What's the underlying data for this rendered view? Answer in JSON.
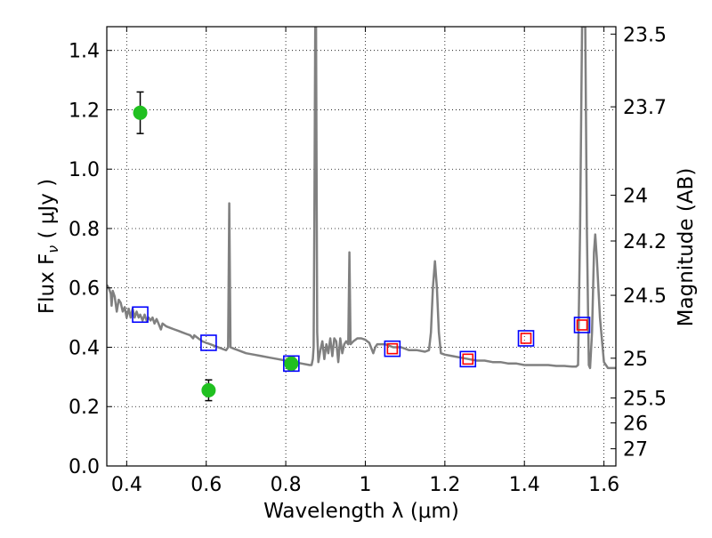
{
  "chart_data": {
    "type": "scatter",
    "xlabel": "Wavelength  λ (μm)",
    "ylabel": "Flux  F",
    "ylabel_subscript": "ν",
    "ylabel_unit": "  ( μJy )",
    "y2label": "Magnitude (AB)",
    "xlim": [
      0.35,
      1.63
    ],
    "ylim": [
      0.0,
      1.48
    ],
    "grid": true,
    "x_ticks": [
      {
        "value": 0.4,
        "label": "0.4"
      },
      {
        "value": 0.6,
        "label": "0.6"
      },
      {
        "value": 0.8,
        "label": "0.8"
      },
      {
        "value": 1.0,
        "label": "1"
      },
      {
        "value": 1.2,
        "label": "1.2"
      },
      {
        "value": 1.4,
        "label": "1.4"
      },
      {
        "value": 1.6,
        "label": "1.6"
      }
    ],
    "y_ticks": [
      {
        "value": 0.0,
        "label": "0.0"
      },
      {
        "value": 0.2,
        "label": "0.2"
      },
      {
        "value": 0.4,
        "label": "0.4"
      },
      {
        "value": 0.6,
        "label": "0.6"
      },
      {
        "value": 0.8,
        "label": "0.8"
      },
      {
        "value": 1.0,
        "label": "1.0"
      },
      {
        "value": 1.2,
        "label": "1.2"
      },
      {
        "value": 1.4,
        "label": "1.4"
      }
    ],
    "y2_ticks": [
      {
        "flux": 1.455,
        "label": "23.5"
      },
      {
        "flux": 1.21,
        "label": "23.7"
      },
      {
        "flux": 0.912,
        "label": "24"
      },
      {
        "flux": 0.758,
        "label": "24.2"
      },
      {
        "flux": 0.575,
        "label": "24.5"
      },
      {
        "flux": 0.363,
        "label": "25"
      },
      {
        "flux": 0.229,
        "label": "25.5"
      },
      {
        "flux": 0.145,
        "label": "26"
      },
      {
        "flux": 0.058,
        "label": "27"
      }
    ],
    "series": [
      {
        "name": "model spectrum",
        "style": "line",
        "color": "#808080",
        "points": [
          [
            0.35,
            0.61
          ],
          [
            0.355,
            0.6
          ],
          [
            0.36,
            0.58
          ],
          [
            0.362,
            0.54
          ],
          [
            0.365,
            0.59
          ],
          [
            0.37,
            0.57
          ],
          [
            0.375,
            0.52
          ],
          [
            0.38,
            0.56
          ],
          [
            0.385,
            0.55
          ],
          [
            0.39,
            0.52
          ],
          [
            0.395,
            0.535
          ],
          [
            0.4,
            0.5
          ],
          [
            0.405,
            0.53
          ],
          [
            0.41,
            0.5
          ],
          [
            0.415,
            0.53
          ],
          [
            0.42,
            0.5
          ],
          [
            0.425,
            0.52
          ],
          [
            0.43,
            0.5
          ],
          [
            0.434,
            0.51
          ],
          [
            0.44,
            0.49
          ],
          [
            0.445,
            0.51
          ],
          [
            0.45,
            0.49
          ],
          [
            0.455,
            0.5
          ],
          [
            0.46,
            0.49
          ],
          [
            0.465,
            0.5
          ],
          [
            0.47,
            0.48
          ],
          [
            0.475,
            0.495
          ],
          [
            0.48,
            0.48
          ],
          [
            0.486,
            0.46
          ],
          [
            0.49,
            0.48
          ],
          [
            0.5,
            0.47
          ],
          [
            0.51,
            0.465
          ],
          [
            0.52,
            0.46
          ],
          [
            0.53,
            0.455
          ],
          [
            0.54,
            0.45
          ],
          [
            0.55,
            0.445
          ],
          [
            0.56,
            0.44
          ],
          [
            0.567,
            0.43
          ],
          [
            0.57,
            0.44
          ],
          [
            0.58,
            0.43
          ],
          [
            0.59,
            0.42
          ],
          [
            0.6,
            0.415
          ],
          [
            0.61,
            0.41
          ],
          [
            0.62,
            0.405
          ],
          [
            0.63,
            0.4
          ],
          [
            0.64,
            0.395
          ],
          [
            0.65,
            0.39
          ],
          [
            0.655,
            0.4
          ],
          [
            0.658,
            0.885
          ],
          [
            0.661,
            0.4
          ],
          [
            0.67,
            0.395
          ],
          [
            0.68,
            0.39
          ],
          [
            0.7,
            0.38
          ],
          [
            0.72,
            0.375
          ],
          [
            0.74,
            0.37
          ],
          [
            0.76,
            0.365
          ],
          [
            0.78,
            0.36
          ],
          [
            0.8,
            0.355
          ],
          [
            0.82,
            0.35
          ],
          [
            0.84,
            0.345
          ],
          [
            0.86,
            0.34
          ],
          [
            0.865,
            0.34
          ],
          [
            0.868,
            0.36
          ],
          [
            0.87,
            0.4
          ],
          [
            0.872,
            0.88
          ],
          [
            0.874,
            1.48
          ],
          [
            0.876,
            1.48
          ],
          [
            0.879,
            0.45
          ],
          [
            0.882,
            0.35
          ],
          [
            0.887,
            0.39
          ],
          [
            0.892,
            0.42
          ],
          [
            0.897,
            0.36
          ],
          [
            0.902,
            0.41
          ],
          [
            0.907,
            0.38
          ],
          [
            0.912,
            0.43
          ],
          [
            0.917,
            0.37
          ],
          [
            0.922,
            0.43
          ],
          [
            0.927,
            0.42
          ],
          [
            0.932,
            0.35
          ],
          [
            0.937,
            0.43
          ],
          [
            0.942,
            0.38
          ],
          [
            0.947,
            0.41
          ],
          [
            0.952,
            0.42
          ],
          [
            0.957,
            0.41
          ],
          [
            0.96,
            0.72
          ],
          [
            0.963,
            0.41
          ],
          [
            0.97,
            0.42
          ],
          [
            0.98,
            0.43
          ],
          [
            0.99,
            0.43
          ],
          [
            1.0,
            0.425
          ],
          [
            1.01,
            0.415
          ],
          [
            1.02,
            0.38
          ],
          [
            1.025,
            0.4
          ],
          [
            1.03,
            0.41
          ],
          [
            1.05,
            0.41
          ],
          [
            1.07,
            0.4
          ],
          [
            1.09,
            0.4
          ],
          [
            1.11,
            0.39
          ],
          [
            1.13,
            0.39
          ],
          [
            1.15,
            0.385
          ],
          [
            1.16,
            0.39
          ],
          [
            1.165,
            0.45
          ],
          [
            1.17,
            0.6
          ],
          [
            1.175,
            0.69
          ],
          [
            1.18,
            0.6
          ],
          [
            1.185,
            0.45
          ],
          [
            1.19,
            0.38
          ],
          [
            1.2,
            0.375
          ],
          [
            1.22,
            0.37
          ],
          [
            1.24,
            0.365
          ],
          [
            1.26,
            0.36
          ],
          [
            1.28,
            0.355
          ],
          [
            1.3,
            0.355
          ],
          [
            1.32,
            0.35
          ],
          [
            1.34,
            0.35
          ],
          [
            1.36,
            0.345
          ],
          [
            1.38,
            0.345
          ],
          [
            1.4,
            0.34
          ],
          [
            1.42,
            0.34
          ],
          [
            1.44,
            0.34
          ],
          [
            1.46,
            0.34
          ],
          [
            1.48,
            0.337
          ],
          [
            1.5,
            0.337
          ],
          [
            1.52,
            0.335
          ],
          [
            1.53,
            0.335
          ],
          [
            1.535,
            0.34
          ],
          [
            1.54,
            0.8
          ],
          [
            1.545,
            1.48
          ],
          [
            1.553,
            1.48
          ],
          [
            1.557,
            0.8
          ],
          [
            1.562,
            0.34
          ],
          [
            1.565,
            0.33
          ],
          [
            1.57,
            0.45
          ],
          [
            1.575,
            0.72
          ],
          [
            1.578,
            0.78
          ],
          [
            1.582,
            0.7
          ],
          [
            1.59,
            0.5
          ],
          [
            1.6,
            0.35
          ],
          [
            1.61,
            0.33
          ],
          [
            1.63,
            0.33
          ]
        ]
      },
      {
        "name": "blue squares",
        "style": "open-square",
        "color": "#0000ff",
        "points": [
          [
            0.434,
            0.51
          ],
          [
            0.606,
            0.415
          ],
          [
            0.814,
            0.345
          ],
          [
            1.068,
            0.395
          ],
          [
            1.258,
            0.36
          ],
          [
            1.404,
            0.43
          ],
          [
            1.545,
            0.475
          ]
        ]
      },
      {
        "name": "red squares",
        "style": "open-square-small",
        "color": "#ff0000",
        "points": [
          [
            1.068,
            0.395
          ],
          [
            1.258,
            0.36
          ],
          [
            1.404,
            0.43
          ],
          [
            1.545,
            0.475
          ]
        ]
      },
      {
        "name": "green points",
        "style": "filled-circle",
        "color": "#20c020",
        "points": [
          {
            "x": 0.434,
            "y": 1.19,
            "err": 0.07
          },
          {
            "x": 0.606,
            "y": 0.255,
            "err": 0.035
          },
          {
            "x": 0.814,
            "y": 0.345,
            "err": 0.02
          }
        ]
      }
    ]
  }
}
